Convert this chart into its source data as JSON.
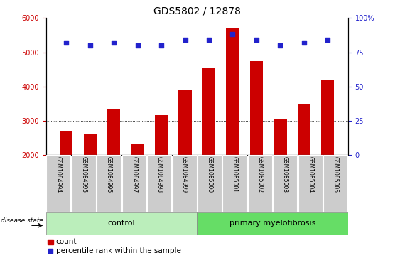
{
  "title": "GDS5802 / 12878",
  "samples": [
    "GSM1084994",
    "GSM1084995",
    "GSM1084996",
    "GSM1084997",
    "GSM1084998",
    "GSM1084999",
    "GSM1085000",
    "GSM1085001",
    "GSM1085002",
    "GSM1085003",
    "GSM1085004",
    "GSM1085005"
  ],
  "counts": [
    2700,
    2600,
    3350,
    2300,
    3150,
    3900,
    4550,
    5700,
    4750,
    3050,
    3500,
    4200
  ],
  "percentiles": [
    82,
    80,
    82,
    80,
    80,
    84,
    84,
    88,
    84,
    80,
    82,
    84
  ],
  "bar_color": "#cc0000",
  "dot_color": "#2222cc",
  "ylim_left": [
    2000,
    6000
  ],
  "ylim_right": [
    0,
    100
  ],
  "yticks_left": [
    2000,
    3000,
    4000,
    5000,
    6000
  ],
  "yticks_right": [
    0,
    25,
    50,
    75,
    100
  ],
  "ytick_labels_right": [
    "0",
    "25",
    "50",
    "75",
    "100%"
  ],
  "control_n": 6,
  "disease_n": 6,
  "control_label": "control",
  "disease_label": "primary myelofibrosis",
  "disease_state_label": "disease state",
  "legend_count_label": "count",
  "legend_pct_label": "percentile rank within the sample",
  "sample_bg": "#cccccc",
  "control_bg": "#bbeebb",
  "disease_bg": "#66dd66",
  "title_fontsize": 10,
  "tick_fontsize": 7,
  "sample_fontsize": 5.5,
  "legend_fontsize": 7.5,
  "group_fontsize": 8
}
